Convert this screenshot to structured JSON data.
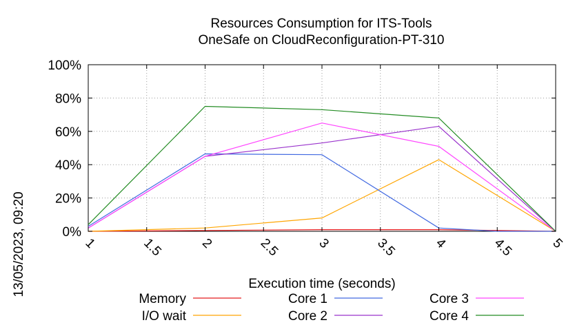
{
  "chart_data": {
    "type": "line",
    "title": "Resources Consumption for ITS-Tools",
    "subtitle": "OneSafe on CloudReconfiguration-PT-310",
    "xlabel": "Execution time (seconds)",
    "ylabel": "",
    "side_label": "13/05/2023, 09:20",
    "x": [
      1,
      2,
      3,
      4,
      5
    ],
    "xlim": [
      1,
      5
    ],
    "ylim": [
      0,
      100
    ],
    "x_ticks": [
      "1",
      "1.5",
      "2",
      "2.5",
      "3",
      "3.5",
      "4",
      "4.5",
      "5"
    ],
    "x_tick_values": [
      1,
      1.5,
      2,
      2.5,
      3,
      3.5,
      4,
      4.5,
      5
    ],
    "y_ticks": [
      "0%",
      "20%",
      "40%",
      "60%",
      "80%",
      "100%"
    ],
    "y_tick_values": [
      0,
      20,
      40,
      60,
      80,
      100
    ],
    "grid": true,
    "legend_position": "bottom",
    "series": [
      {
        "name": "Memory",
        "color": "#e41a1c",
        "x": [
          1,
          2,
          3,
          4,
          5
        ],
        "values": [
          0,
          0.5,
          1,
          1,
          0
        ]
      },
      {
        "name": "I/O wait",
        "color": "#ffa500",
        "x": [
          1,
          2,
          3,
          4,
          5
        ],
        "values": [
          0,
          2,
          8,
          43,
          0
        ]
      },
      {
        "name": "Core 1",
        "color": "#4169e1",
        "x": [
          1,
          2,
          3,
          4,
          4.5,
          5
        ],
        "values": [
          3,
          46.5,
          46,
          2,
          0,
          0
        ]
      },
      {
        "name": "Core 2",
        "color": "#9932cc",
        "x": [
          1,
          2,
          3,
          4,
          5
        ],
        "values": [
          2,
          45,
          53,
          63,
          0
        ]
      },
      {
        "name": "Core 3",
        "color": "#ff44ff",
        "x": [
          1,
          2,
          3,
          4,
          5
        ],
        "values": [
          2,
          45,
          65,
          51,
          0
        ]
      },
      {
        "name": "Core 4",
        "color": "#228b22",
        "x": [
          1,
          2,
          3,
          4,
          5
        ],
        "values": [
          4,
          75,
          73,
          68,
          0
        ]
      }
    ]
  }
}
